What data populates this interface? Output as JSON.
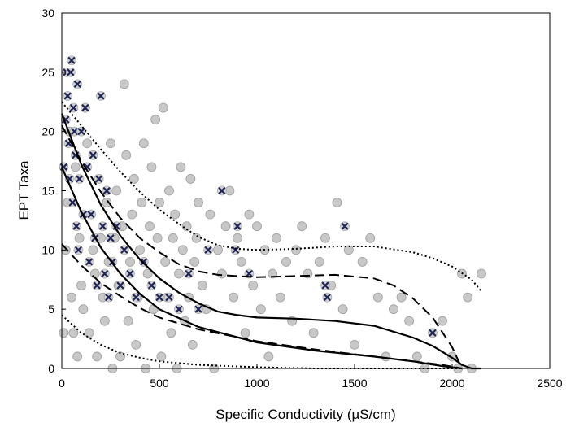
{
  "chart_data": {
    "type": "scatter",
    "title": "",
    "xlabel": "Specific Conductivity (µS/cm)",
    "ylabel": "EPT Taxa",
    "xlim": [
      0,
      2500
    ],
    "ylim": [
      0,
      30
    ],
    "x_ticks": [
      "0",
      "500",
      "1000",
      "1500",
      "2000",
      "2500"
    ],
    "y_ticks": [
      "0",
      "5",
      "10",
      "15",
      "20",
      "25",
      "30"
    ],
    "grid": false,
    "legend": "none",
    "series": [
      {
        "marker": "circle",
        "color": "#c8c8c8",
        "edge_color": "#9e9e9e",
        "points": [
          [
            10,
            3
          ],
          [
            20,
            10
          ],
          [
            30,
            14
          ],
          [
            40,
            20
          ],
          [
            50,
            6
          ],
          [
            60,
            3
          ],
          [
            70,
            17
          ],
          [
            80,
            1
          ],
          [
            90,
            11
          ],
          [
            100,
            7
          ],
          [
            110,
            5
          ],
          [
            120,
            22
          ],
          [
            130,
            19
          ],
          [
            140,
            3
          ],
          [
            150,
            13
          ],
          [
            160,
            10
          ],
          [
            170,
            8
          ],
          [
            180,
            1
          ],
          [
            190,
            16
          ],
          [
            200,
            11
          ],
          [
            210,
            6
          ],
          [
            220,
            4
          ],
          [
            230,
            14
          ],
          [
            240,
            9
          ],
          [
            250,
            19
          ],
          [
            260,
            0
          ],
          [
            270,
            11
          ],
          [
            280,
            15
          ],
          [
            290,
            7
          ],
          [
            300,
            1
          ],
          [
            310,
            12
          ],
          [
            320,
            24
          ],
          [
            330,
            18
          ],
          [
            340,
            4
          ],
          [
            350,
            9
          ],
          [
            360,
            13
          ],
          [
            370,
            16
          ],
          [
            380,
            2
          ],
          [
            390,
            6
          ],
          [
            400,
            10
          ],
          [
            410,
            14
          ],
          [
            420,
            19
          ],
          [
            430,
            0
          ],
          [
            440,
            8
          ],
          [
            450,
            12
          ],
          [
            460,
            17
          ],
          [
            470,
            5
          ],
          [
            480,
            21
          ],
          [
            490,
            11
          ],
          [
            500,
            14
          ],
          [
            510,
            1
          ],
          [
            520,
            22
          ],
          [
            530,
            9
          ],
          [
            540,
            6
          ],
          [
            550,
            15
          ],
          [
            560,
            3
          ],
          [
            570,
            11
          ],
          [
            580,
            13
          ],
          [
            590,
            0
          ],
          [
            600,
            8
          ],
          [
            610,
            17
          ],
          [
            620,
            10
          ],
          [
            630,
            4
          ],
          [
            640,
            12
          ],
          [
            650,
            6
          ],
          [
            660,
            16
          ],
          [
            670,
            2
          ],
          [
            680,
            9
          ],
          [
            690,
            11
          ],
          [
            700,
            14
          ],
          [
            720,
            7
          ],
          [
            740,
            5
          ],
          [
            760,
            13
          ],
          [
            780,
            0
          ],
          [
            800,
            10
          ],
          [
            820,
            8
          ],
          [
            840,
            12
          ],
          [
            860,
            15
          ],
          [
            880,
            6
          ],
          [
            900,
            11
          ],
          [
            920,
            9
          ],
          [
            940,
            3
          ],
          [
            960,
            13
          ],
          [
            980,
            7
          ],
          [
            1000,
            12
          ],
          [
            1020,
            5
          ],
          [
            1040,
            10
          ],
          [
            1060,
            1
          ],
          [
            1080,
            8
          ],
          [
            1100,
            11
          ],
          [
            1120,
            6
          ],
          [
            1150,
            9
          ],
          [
            1180,
            4
          ],
          [
            1200,
            10
          ],
          [
            1230,
            12
          ],
          [
            1260,
            8
          ],
          [
            1290,
            3
          ],
          [
            1320,
            9
          ],
          [
            1350,
            11
          ],
          [
            1380,
            7
          ],
          [
            1410,
            14
          ],
          [
            1440,
            5
          ],
          [
            1470,
            10
          ],
          [
            1500,
            2
          ],
          [
            1540,
            9
          ],
          [
            1580,
            11
          ],
          [
            1620,
            6
          ],
          [
            1660,
            1
          ],
          [
            1700,
            5
          ],
          [
            1740,
            6
          ],
          [
            1780,
            4
          ],
          [
            1820,
            1
          ],
          [
            1860,
            0
          ],
          [
            1900,
            3
          ],
          [
            1950,
            4
          ],
          [
            2000,
            1
          ],
          [
            2030,
            0
          ],
          [
            2050,
            8
          ],
          [
            2080,
            6
          ],
          [
            2100,
            0
          ],
          [
            2150,
            8
          ]
        ]
      },
      {
        "marker": "x-in-circle",
        "color": "#1f2555",
        "edge_color": "#b0b0b0",
        "points": [
          [
            10,
            17
          ],
          [
            20,
            21
          ],
          [
            25,
            25
          ],
          [
            30,
            23
          ],
          [
            35,
            19
          ],
          [
            40,
            16
          ],
          [
            45,
            25
          ],
          [
            50,
            26
          ],
          [
            55,
            14
          ],
          [
            60,
            22
          ],
          [
            65,
            20
          ],
          [
            70,
            18
          ],
          [
            75,
            12
          ],
          [
            80,
            24
          ],
          [
            85,
            10
          ],
          [
            90,
            16
          ],
          [
            100,
            20
          ],
          [
            110,
            13
          ],
          [
            120,
            22
          ],
          [
            130,
            17
          ],
          [
            140,
            9
          ],
          [
            150,
            13
          ],
          [
            160,
            18
          ],
          [
            170,
            11
          ],
          [
            180,
            7
          ],
          [
            190,
            16
          ],
          [
            200,
            23
          ],
          [
            210,
            12
          ],
          [
            220,
            8
          ],
          [
            230,
            15
          ],
          [
            240,
            6
          ],
          [
            250,
            11
          ],
          [
            260,
            9
          ],
          [
            280,
            12
          ],
          [
            300,
            7
          ],
          [
            320,
            10
          ],
          [
            350,
            8
          ],
          [
            380,
            6
          ],
          [
            420,
            9
          ],
          [
            460,
            7
          ],
          [
            500,
            6
          ],
          [
            550,
            6
          ],
          [
            600,
            5
          ],
          [
            650,
            8
          ],
          [
            700,
            5
          ],
          [
            750,
            10
          ],
          [
            820,
            15
          ],
          [
            890,
            10
          ],
          [
            900,
            12
          ],
          [
            960,
            8
          ],
          [
            1350,
            7
          ],
          [
            1360,
            6
          ],
          [
            1450,
            12
          ],
          [
            1900,
            3
          ]
        ]
      }
    ],
    "fit_lines": [
      {
        "style": "solid",
        "x": [
          0,
          100,
          200,
          300,
          400,
          500,
          600,
          700,
          800,
          900,
          1000,
          1200,
          1400,
          1600,
          1800,
          1900,
          2000,
          2050,
          2100,
          2150
        ],
        "y": [
          21.5,
          17.2,
          13.8,
          11.2,
          9.2,
          7.6,
          6.4,
          5.5,
          4.8,
          4.5,
          4.3,
          4.2,
          4.0,
          3.6,
          2.6,
          1.9,
          0.9,
          0.3,
          0,
          0
        ]
      },
      {
        "style": "solid",
        "x": [
          0,
          100,
          200,
          300,
          400,
          500,
          700,
          1000,
          1300,
          1600,
          1800,
          1950,
          2050
        ],
        "y": [
          17,
          13.2,
          10.2,
          8.0,
          6.3,
          5.0,
          3.5,
          2.2,
          1.5,
          1.0,
          0.6,
          0.2,
          0
        ]
      },
      {
        "style": "dashed",
        "x": [
          0,
          100,
          200,
          300,
          400,
          500,
          600,
          700,
          800,
          900,
          1000,
          1200,
          1400,
          1600,
          1700,
          1800,
          1900,
          2000,
          2050
        ],
        "y": [
          20.5,
          17.5,
          14.9,
          12.7,
          11.0,
          9.8,
          8.8,
          8.2,
          7.9,
          7.8,
          7.7,
          7.8,
          7.9,
          7.6,
          7.0,
          5.9,
          4.3,
          1.8,
          0
        ]
      },
      {
        "style": "dashed",
        "x": [
          0,
          100,
          200,
          300,
          400,
          500,
          700,
          1000,
          1300,
          1600,
          1800,
          1950,
          2050
        ],
        "y": [
          10.5,
          8.7,
          7.2,
          6.1,
          5.1,
          4.3,
          3.3,
          2.3,
          1.6,
          1.0,
          0.6,
          0.3,
          0
        ]
      },
      {
        "style": "dotted",
        "x": [
          0,
          100,
          200,
          300,
          400,
          500,
          600,
          700,
          800,
          900,
          1000,
          1200,
          1400,
          1600,
          1800,
          1900,
          2000,
          2100,
          2150
        ],
        "y": [
          22.5,
          20.5,
          18.5,
          16.6,
          14.9,
          13.4,
          12.2,
          11.1,
          10.4,
          10.1,
          10.0,
          10.1,
          10.3,
          10.3,
          9.8,
          9.3,
          8.6,
          7.5,
          6.5
        ]
      },
      {
        "style": "dotted",
        "x": [
          0,
          100,
          200,
          300,
          400,
          500,
          700,
          1000,
          1300,
          1600,
          1800,
          1950,
          2050
        ],
        "y": [
          4.5,
          3.0,
          2.0,
          1.3,
          0.9,
          0.6,
          0.3,
          0.1,
          0,
          0,
          0,
          0,
          0
        ]
      }
    ]
  }
}
